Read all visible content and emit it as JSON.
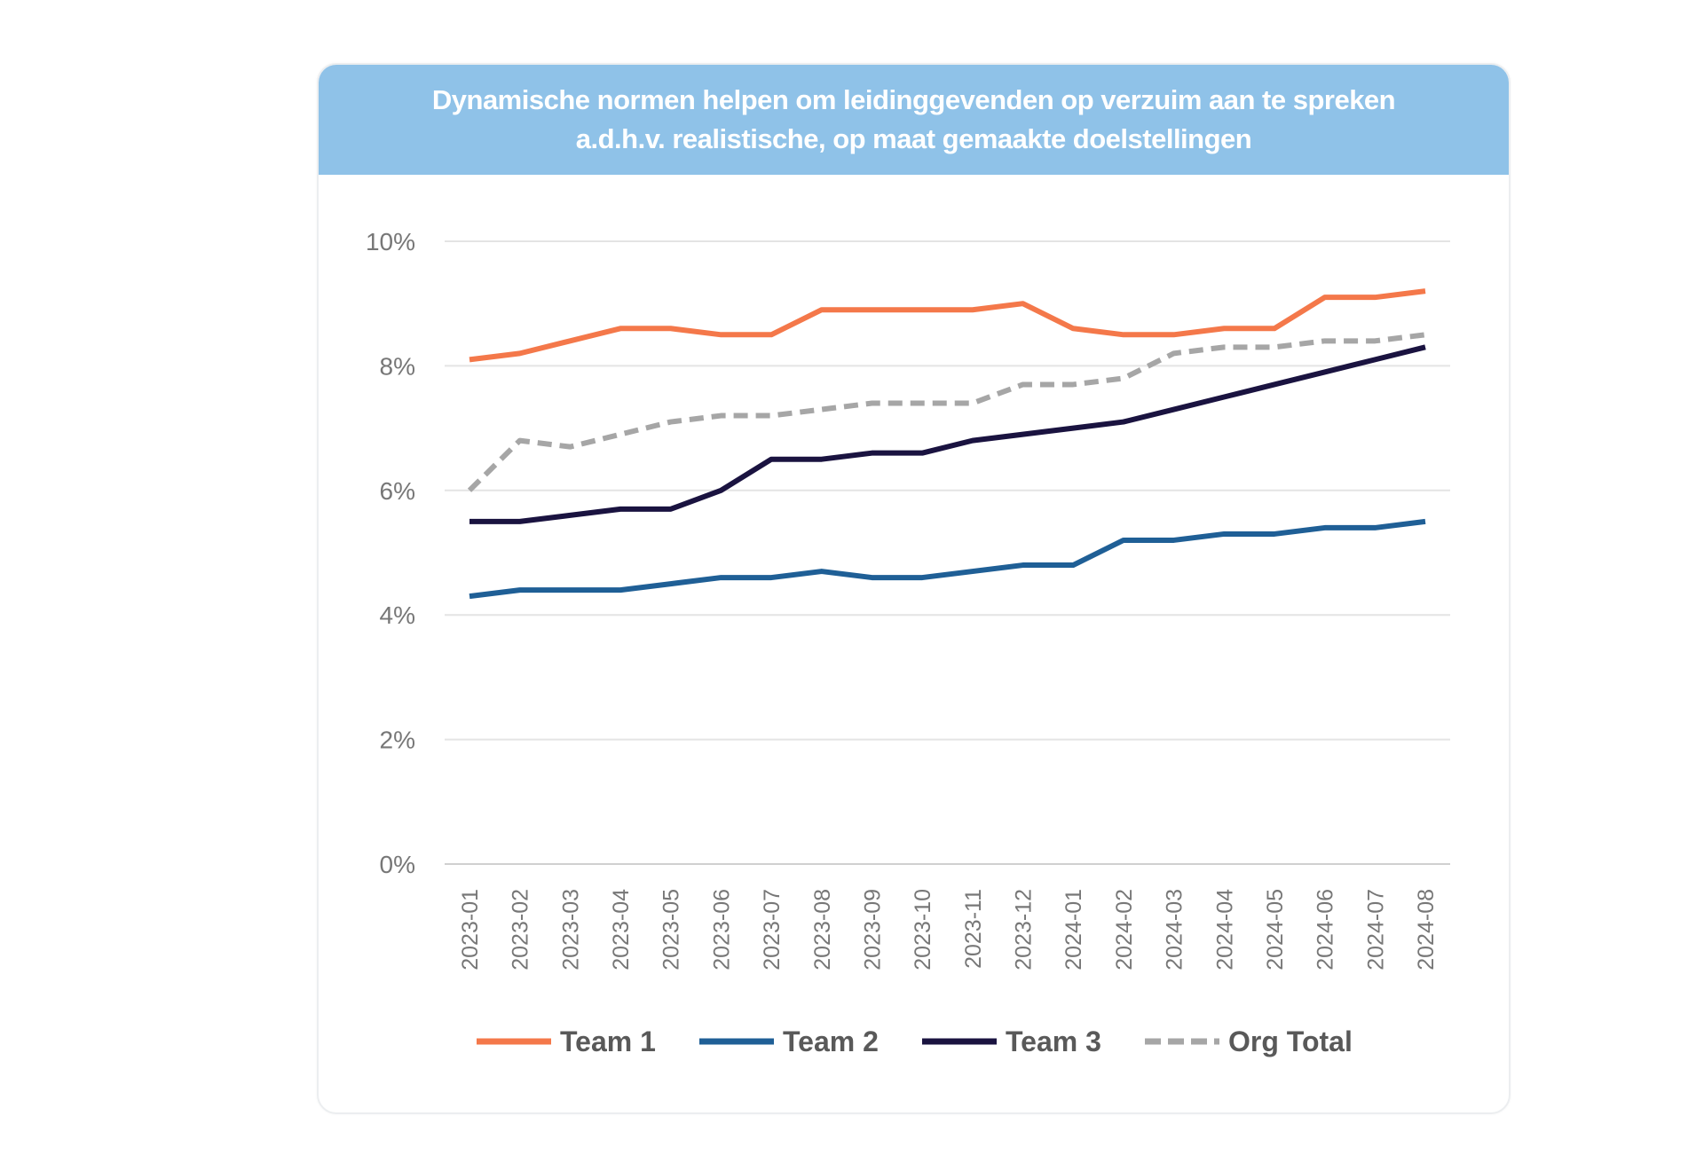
{
  "chart_data": {
    "type": "line",
    "title": [
      "Dynamische normen helpen om leidinggevenden op verzuim aan te spreken",
      "a.d.h.v. realistische, op maat gemaakte doelstellingen"
    ],
    "xlabel": "",
    "ylabel": "",
    "ylim": [
      0,
      10
    ],
    "yticks": [
      "0%",
      "2%",
      "4%",
      "6%",
      "8%",
      "10%"
    ],
    "ytick_values": [
      0,
      2,
      4,
      6,
      8,
      10
    ],
    "grid": true,
    "legend_position": "bottom",
    "x": [
      "2023-01",
      "2023-02",
      "2023-03",
      "2023-04",
      "2023-05",
      "2023-06",
      "2023-07",
      "2023-08",
      "2023-09",
      "2023-10",
      "2023-11",
      "2023-12",
      "2024-01",
      "2024-02",
      "2024-03",
      "2024-04",
      "2024-05",
      "2024-06",
      "2024-07",
      "2024-08"
    ],
    "series": [
      {
        "name": "Team 1",
        "color": "#f4784a",
        "dashed": false,
        "values": [
          8.1,
          8.2,
          8.4,
          8.6,
          8.6,
          8.5,
          8.5,
          8.9,
          8.9,
          8.9,
          8.9,
          9.0,
          8.6,
          8.5,
          8.5,
          8.6,
          8.6,
          9.1,
          9.1,
          9.2
        ]
      },
      {
        "name": "Team 2",
        "color": "#1f5f96",
        "dashed": false,
        "values": [
          4.3,
          4.4,
          4.4,
          4.4,
          4.5,
          4.6,
          4.6,
          4.7,
          4.6,
          4.6,
          4.7,
          4.8,
          4.8,
          5.2,
          5.2,
          5.3,
          5.3,
          5.4,
          5.4,
          5.5
        ]
      },
      {
        "name": "Team 3",
        "color": "#1a1340",
        "dashed": false,
        "values": [
          5.5,
          5.5,
          5.6,
          5.7,
          5.7,
          6.0,
          6.5,
          6.5,
          6.6,
          6.6,
          6.8,
          6.9,
          7.0,
          7.1,
          7.3,
          7.5,
          7.7,
          7.9,
          8.1,
          8.3
        ]
      },
      {
        "name": "Org Total",
        "color": "#a6a6a6",
        "dashed": true,
        "values": [
          6.0,
          6.8,
          6.7,
          6.9,
          7.1,
          7.2,
          7.2,
          7.3,
          7.4,
          7.4,
          7.4,
          7.7,
          7.7,
          7.8,
          8.2,
          8.3,
          8.3,
          8.4,
          8.4,
          8.5
        ]
      }
    ]
  }
}
